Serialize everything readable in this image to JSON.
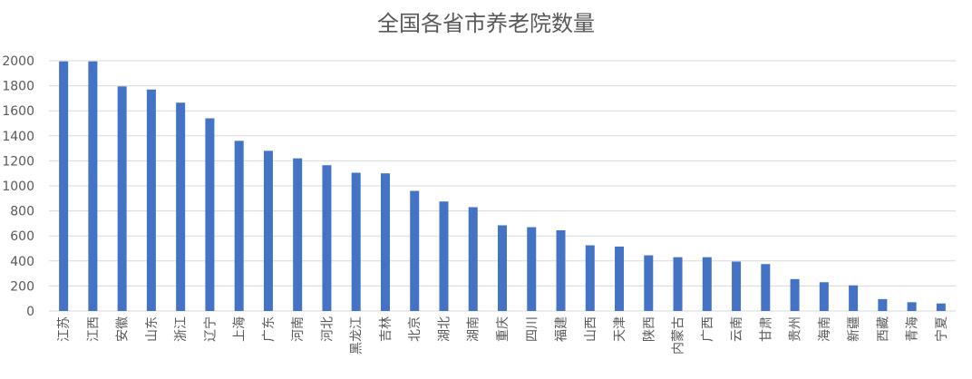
{
  "chart_data": {
    "type": "bar",
    "title": "全国各省市养老院数量",
    "xlabel": "",
    "ylabel": "",
    "ylim": [
      0,
      2000
    ],
    "yticks": [
      0,
      200,
      400,
      600,
      800,
      1000,
      1200,
      1400,
      1600,
      1800,
      2000
    ],
    "grid": true,
    "bar_color": "#4472C4",
    "categories": [
      "江苏",
      "江西",
      "安徽",
      "山东",
      "浙江",
      "辽宁",
      "上海",
      "广东",
      "河南",
      "河北",
      "黑龙江",
      "吉林",
      "北京",
      "湖北",
      "湖南",
      "重庆",
      "四川",
      "福建",
      "山西",
      "天津",
      "陕西",
      "内蒙古",
      "广西",
      "云南",
      "甘肃",
      "贵州",
      "海南",
      "新疆",
      "西藏",
      "青海",
      "宁夏"
    ],
    "values": [
      1995,
      1995,
      1795,
      1770,
      1665,
      1540,
      1360,
      1280,
      1220,
      1165,
      1105,
      1100,
      960,
      875,
      830,
      685,
      670,
      645,
      525,
      515,
      445,
      430,
      430,
      395,
      375,
      255,
      230,
      205,
      95,
      70,
      60
    ]
  }
}
